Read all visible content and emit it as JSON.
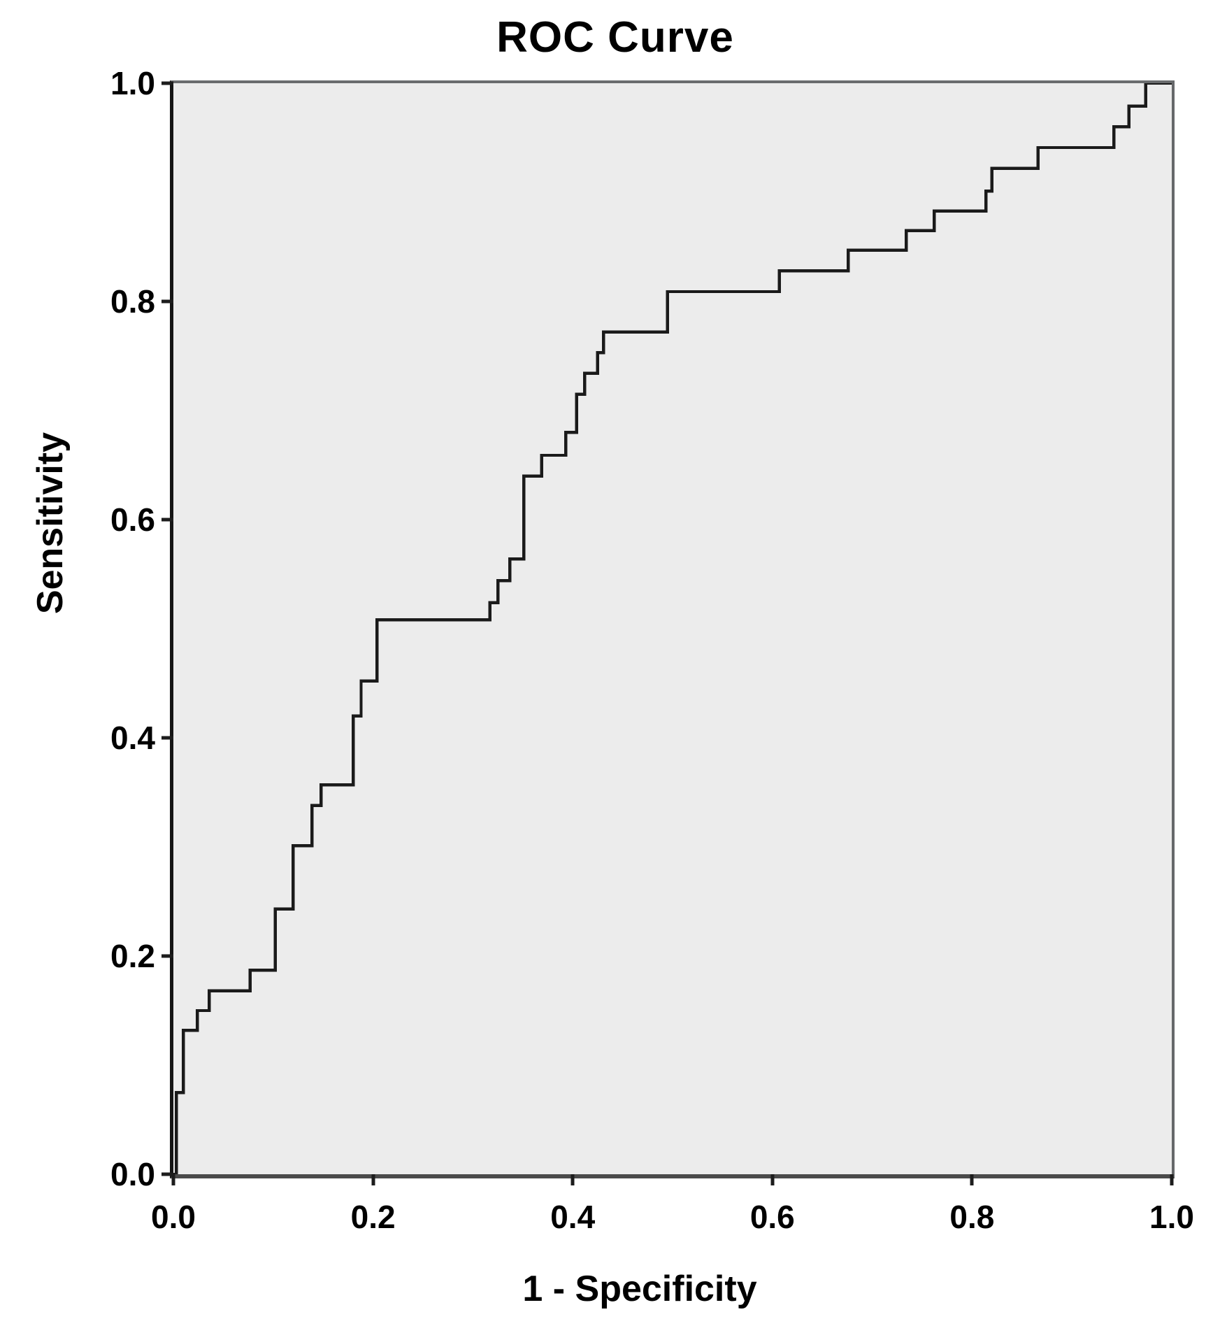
{
  "figure": {
    "title": "ROC Curve",
    "x_axis_label": "1 - Specificity",
    "y_axis_label": "Sensitivity"
  },
  "axes": {
    "x_ticks": [
      {
        "value": 0.0,
        "label": "0.0"
      },
      {
        "value": 0.2,
        "label": "0.2"
      },
      {
        "value": 0.4,
        "label": "0.4"
      },
      {
        "value": 0.6,
        "label": "0.6"
      },
      {
        "value": 0.8,
        "label": "0.8"
      },
      {
        "value": 1.0,
        "label": "1.0"
      }
    ],
    "y_ticks": [
      {
        "value": 0.0,
        "label": "0.0"
      },
      {
        "value": 0.2,
        "label": "0.2"
      },
      {
        "value": 0.4,
        "label": "0.4"
      },
      {
        "value": 0.6,
        "label": "0.6"
      },
      {
        "value": 0.8,
        "label": "0.8"
      },
      {
        "value": 1.0,
        "label": "1.0"
      }
    ]
  },
  "colors": {
    "plot_background": "#ececec",
    "curve": "#1a1a1a",
    "tick": "#1d1d1d",
    "text": "#000000",
    "panel_border_gray": "#6a6c6e",
    "axis_bottom": "#4a4a4a",
    "axis_left": "#151515"
  },
  "chart_data": {
    "type": "line",
    "subtype": "roc_step_curve",
    "title": "ROC Curve",
    "xlabel": "1 - Specificity",
    "ylabel": "Sensitivity",
    "xlim": [
      0,
      1
    ],
    "ylim": [
      0,
      1
    ],
    "grid": false,
    "legend": null,
    "series": [
      {
        "name": "ROC curve",
        "points": [
          [
            0.0,
            0.0
          ],
          [
            0.003,
            0.0
          ],
          [
            0.003,
            0.075
          ],
          [
            0.01,
            0.075
          ],
          [
            0.01,
            0.132
          ],
          [
            0.024,
            0.132
          ],
          [
            0.024,
            0.15
          ],
          [
            0.036,
            0.15
          ],
          [
            0.036,
            0.168
          ],
          [
            0.077,
            0.168
          ],
          [
            0.077,
            0.187
          ],
          [
            0.102,
            0.187
          ],
          [
            0.102,
            0.243
          ],
          [
            0.12,
            0.243
          ],
          [
            0.12,
            0.301
          ],
          [
            0.139,
            0.301
          ],
          [
            0.139,
            0.338
          ],
          [
            0.148,
            0.338
          ],
          [
            0.148,
            0.357
          ],
          [
            0.18,
            0.357
          ],
          [
            0.18,
            0.42
          ],
          [
            0.188,
            0.42
          ],
          [
            0.188,
            0.452
          ],
          [
            0.204,
            0.452
          ],
          [
            0.204,
            0.508
          ],
          [
            0.317,
            0.508
          ],
          [
            0.317,
            0.524
          ],
          [
            0.325,
            0.524
          ],
          [
            0.325,
            0.544
          ],
          [
            0.337,
            0.544
          ],
          [
            0.337,
            0.564
          ],
          [
            0.351,
            0.564
          ],
          [
            0.351,
            0.64
          ],
          [
            0.369,
            0.64
          ],
          [
            0.369,
            0.659
          ],
          [
            0.393,
            0.659
          ],
          [
            0.393,
            0.68
          ],
          [
            0.404,
            0.68
          ],
          [
            0.404,
            0.715
          ],
          [
            0.412,
            0.715
          ],
          [
            0.412,
            0.734
          ],
          [
            0.425,
            0.734
          ],
          [
            0.425,
            0.753
          ],
          [
            0.431,
            0.753
          ],
          [
            0.431,
            0.772
          ],
          [
            0.495,
            0.772
          ],
          [
            0.495,
            0.809
          ],
          [
            0.607,
            0.809
          ],
          [
            0.607,
            0.828
          ],
          [
            0.676,
            0.828
          ],
          [
            0.676,
            0.847
          ],
          [
            0.734,
            0.847
          ],
          [
            0.734,
            0.865
          ],
          [
            0.762,
            0.865
          ],
          [
            0.762,
            0.883
          ],
          [
            0.814,
            0.883
          ],
          [
            0.814,
            0.901
          ],
          [
            0.82,
            0.901
          ],
          [
            0.82,
            0.922
          ],
          [
            0.866,
            0.922
          ],
          [
            0.866,
            0.941
          ],
          [
            0.942,
            0.941
          ],
          [
            0.942,
            0.96
          ],
          [
            0.957,
            0.96
          ],
          [
            0.957,
            0.979
          ],
          [
            0.974,
            0.979
          ],
          [
            0.974,
            1.0
          ],
          [
            1.0,
            1.0
          ]
        ]
      }
    ]
  }
}
